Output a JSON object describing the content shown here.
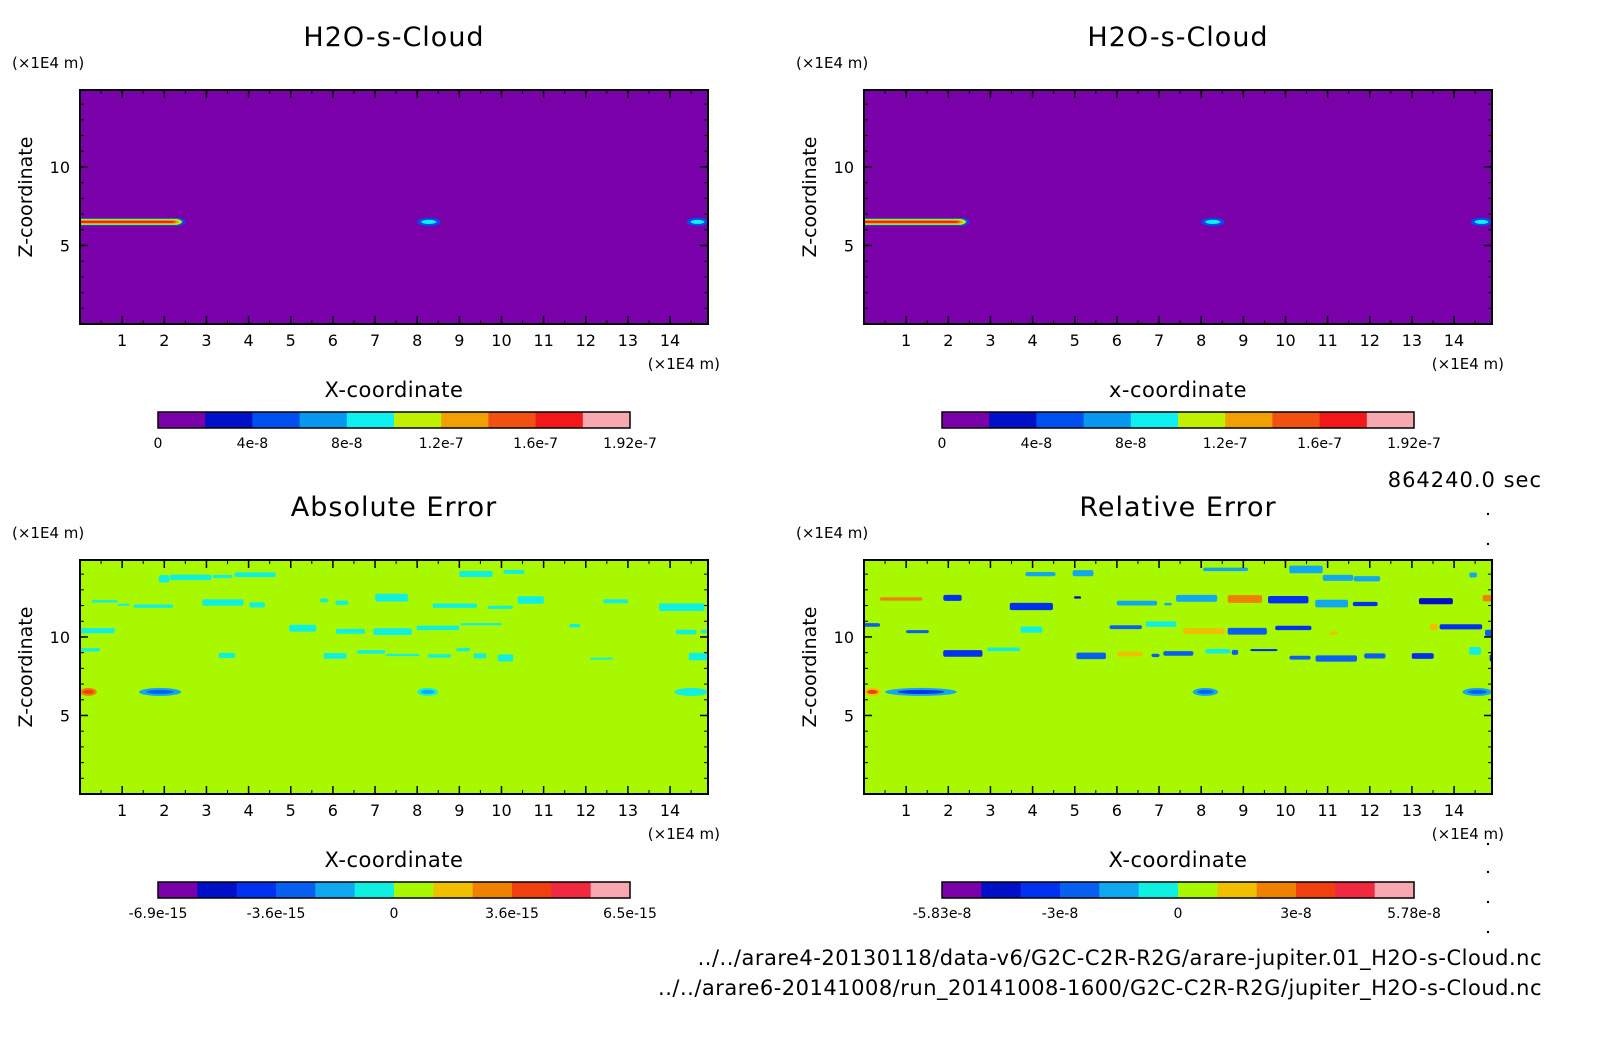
{
  "timestamp": "864240.0 sec",
  "footer": {
    "line1": "../../arare4-20130118/data-v6/G2C-C2R-R2G/arare-jupiter.01_H2O-s-Cloud.nc",
    "line2": "../../arare6-20141008/run_20141008-1600/G2C-C2R-R2G/jupiter_H2O-s-Cloud.nc"
  },
  "chart_data": [
    {
      "type": "heatmap",
      "title": "H2O-s-Cloud",
      "xlabel": "X-coordinate",
      "ylabel": "Z-coordinate",
      "x_unit": "(×1E4 m)",
      "y_unit": "(×1E4 m)",
      "xlim": [
        0,
        14.9
      ],
      "ylim": [
        0,
        14.9
      ],
      "xticks": [
        "1",
        "2",
        "3",
        "4",
        "5",
        "6",
        "7",
        "8",
        "9",
        "10",
        "11",
        "12",
        "13",
        "14"
      ],
      "yticks": [
        "5",
        "10"
      ],
      "background_color": "#7a00aa",
      "features": [
        {
          "kind": "streak",
          "x0": 0.0,
          "x1": 2.4,
          "z": 6.5,
          "peak_value": 1.9e-07
        },
        {
          "kind": "blob",
          "x0": 8.0,
          "x1": 8.55,
          "z": 6.5,
          "peak_value": 9e-08
        },
        {
          "kind": "blob",
          "x0": 14.4,
          "x1": 14.9,
          "z": 6.5,
          "peak_value": 8e-08
        }
      ],
      "colorbar": {
        "min": 0,
        "max": 1.92e-07,
        "colors": [
          "#7a00aa",
          "#0010c8",
          "#0050f0",
          "#0898f0",
          "#10f0f0",
          "#c0f000",
          "#f0a000",
          "#f05010",
          "#f01818",
          "#f8a8b0"
        ],
        "labels": [
          "0",
          "4e-8",
          "8e-8",
          "1.2e-7",
          "1.6e-7",
          "1.92e-7"
        ]
      }
    },
    {
      "type": "heatmap",
      "title": "H2O-s-Cloud",
      "xlabel": "x-coordinate",
      "ylabel": "Z-coordinate",
      "x_unit": "(×1E4 m)",
      "y_unit": "(×1E4 m)",
      "xlim": [
        0,
        14.9
      ],
      "ylim": [
        0,
        14.9
      ],
      "xticks": [
        "1",
        "2",
        "3",
        "4",
        "5",
        "6",
        "7",
        "8",
        "9",
        "10",
        "11",
        "12",
        "13",
        "14"
      ],
      "yticks": [
        "5",
        "10"
      ],
      "background_color": "#7a00aa",
      "features": [
        {
          "kind": "streak",
          "x0": 0.0,
          "x1": 2.4,
          "z": 6.5,
          "peak_value": 1.9e-07
        },
        {
          "kind": "blob",
          "x0": 8.0,
          "x1": 8.55,
          "z": 6.5,
          "peak_value": 9e-08
        },
        {
          "kind": "blob",
          "x0": 14.4,
          "x1": 14.9,
          "z": 6.5,
          "peak_value": 8e-08
        }
      ],
      "colorbar": {
        "min": 0,
        "max": 1.92e-07,
        "colors": [
          "#7a00aa",
          "#0010c8",
          "#0050f0",
          "#0898f0",
          "#10f0f0",
          "#c0f000",
          "#f0a000",
          "#f05010",
          "#f01818",
          "#f8a8b0"
        ],
        "labels": [
          "0",
          "4e-8",
          "8e-8",
          "1.2e-7",
          "1.6e-7",
          "1.92e-7"
        ]
      }
    },
    {
      "type": "heatmap",
      "title": "Absolute Error",
      "xlabel": "X-coordinate",
      "ylabel": "Z-coordinate",
      "x_unit": "(×1E4 m)",
      "y_unit": "(×1E4 m)",
      "xlim": [
        0,
        14.9
      ],
      "ylim": [
        0,
        14.9
      ],
      "xticks": [
        "1",
        "2",
        "3",
        "4",
        "5",
        "6",
        "7",
        "8",
        "9",
        "10",
        "11",
        "12",
        "13",
        "14"
      ],
      "yticks": [
        "5",
        "10"
      ],
      "background_color": "#a8f800",
      "features": [
        {
          "kind": "band",
          "z": 14.0,
          "value": -1e-15,
          "density": 0.35
        },
        {
          "kind": "band",
          "z": 12.2,
          "value": -1.2e-15,
          "density": 0.55
        },
        {
          "kind": "band",
          "z": 10.6,
          "value": -1e-15,
          "density": 0.35
        },
        {
          "kind": "band",
          "z": 8.9,
          "value": -1e-15,
          "density": 0.45
        },
        {
          "kind": "blob",
          "x0": 1.4,
          "x1": 2.4,
          "z": 6.5,
          "value": -3e-15
        },
        {
          "kind": "blob",
          "x0": 0.0,
          "x1": 0.4,
          "z": 6.5,
          "value": 4e-15
        },
        {
          "kind": "blob",
          "x0": 8.0,
          "x1": 8.5,
          "z": 6.5,
          "value": -1.5e-15
        },
        {
          "kind": "blob",
          "x0": 14.1,
          "x1": 14.9,
          "z": 6.5,
          "value": -1.2e-15
        }
      ],
      "colorbar": {
        "min": -6.9e-15,
        "max": 6.5e-15,
        "colors": [
          "#7a00aa",
          "#0010c8",
          "#0030f0",
          "#0860f0",
          "#10a8f0",
          "#10f0e0",
          "#a8f800",
          "#f0c000",
          "#f08000",
          "#f04010",
          "#f02840",
          "#f8a8b0"
        ],
        "labels": [
          "-6.9e-15",
          "-3.6e-15",
          "0",
          "3.6e-15",
          "6.5e-15"
        ]
      }
    },
    {
      "type": "heatmap",
      "title": "Relative Error",
      "xlabel": "X-coordinate",
      "ylabel": "Z-coordinate",
      "x_unit": "(×1E4 m)",
      "y_unit": "(×1E4 m)",
      "xlim": [
        0,
        14.9
      ],
      "ylim": [
        0,
        14.9
      ],
      "xticks": [
        "1",
        "2",
        "3",
        "4",
        "5",
        "6",
        "7",
        "8",
        "9",
        "10",
        "11",
        "12",
        "13",
        "14"
      ],
      "yticks": [
        "5",
        "10"
      ],
      "background_color": "#a8f800",
      "features": [
        {
          "kind": "band",
          "z": 14.0,
          "value": -1e-08,
          "density": 0.35
        },
        {
          "kind": "band",
          "z": 12.2,
          "value": -3e-08,
          "density": 0.6,
          "mixed": true
        },
        {
          "kind": "band",
          "z": 10.5,
          "value": -2e-08,
          "density": 0.55,
          "mixed": true
        },
        {
          "kind": "band",
          "z": 8.9,
          "value": -2e-08,
          "density": 0.6,
          "mixed": true
        },
        {
          "kind": "blob",
          "x0": 0.5,
          "x1": 2.2,
          "z": 6.5,
          "value": -3e-08
        },
        {
          "kind": "blob",
          "x0": 0.0,
          "x1": 0.4,
          "z": 6.5,
          "value": 3e-08
        },
        {
          "kind": "blob",
          "x0": 7.8,
          "x1": 8.4,
          "z": 6.5,
          "value": -2e-08
        },
        {
          "kind": "blob",
          "x0": 14.2,
          "x1": 14.9,
          "z": 6.5,
          "value": -2e-08
        }
      ],
      "colorbar": {
        "min": -5.83e-08,
        "max": 5.78e-08,
        "colors": [
          "#7a00aa",
          "#0010c8",
          "#0030f0",
          "#0860f0",
          "#10a8f0",
          "#10f0e0",
          "#a8f800",
          "#f0c000",
          "#f08000",
          "#f04010",
          "#f02840",
          "#f8a8b0"
        ],
        "labels": [
          "-5.83e-8",
          "-3e-8",
          "0",
          "3e-8",
          "5.78e-8"
        ]
      }
    }
  ]
}
